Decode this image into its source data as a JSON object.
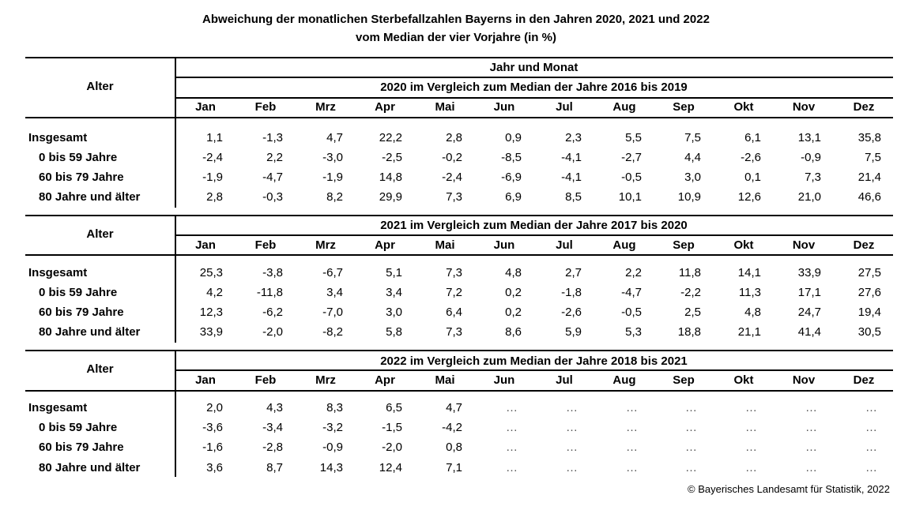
{
  "title": {
    "line1": "Abweichung der monatlichen Sterbefallzahlen Bayerns in den Jahren 2020, 2021 und 2022",
    "line2": "vom Median der vier Vorjahre (in %)"
  },
  "row_header": "Alter",
  "top_header": "Jahr und Monat",
  "months": [
    "Jan",
    "Feb",
    "Mrz",
    "Apr",
    "Mai",
    "Jun",
    "Jul",
    "Aug",
    "Sep",
    "Okt",
    "Nov",
    "Dez"
  ],
  "sections": [
    {
      "heading": "2020 im Vergleich zum Median der Jahre 2016 bis 2019",
      "rows": [
        {
          "label": "Insgesamt",
          "values": [
            "1,1",
            "-1,3",
            "4,7",
            "22,2",
            "2,8",
            "0,9",
            "2,3",
            "5,5",
            "7,5",
            "6,1",
            "13,1",
            "35,8"
          ]
        },
        {
          "label": "0 bis 59 Jahre",
          "values": [
            "-2,4",
            "2,2",
            "-3,0",
            "-2,5",
            "-0,2",
            "-8,5",
            "-4,1",
            "-2,7",
            "4,4",
            "-2,6",
            "-0,9",
            "7,5"
          ]
        },
        {
          "label": "60 bis 79 Jahre",
          "values": [
            "-1,9",
            "-4,7",
            "-1,9",
            "14,8",
            "-2,4",
            "-6,9",
            "-4,1",
            "-0,5",
            "3,0",
            "0,1",
            "7,3",
            "21,4"
          ]
        },
        {
          "label": "80 Jahre und älter",
          "values": [
            "2,8",
            "-0,3",
            "8,2",
            "29,9",
            "7,3",
            "6,9",
            "8,5",
            "10,1",
            "10,9",
            "12,6",
            "21,0",
            "46,6"
          ]
        }
      ]
    },
    {
      "heading": "2021 im Vergleich zum Median der Jahre 2017 bis 2020",
      "rows": [
        {
          "label": "Insgesamt",
          "values": [
            "25,3",
            "-3,8",
            "-6,7",
            "5,1",
            "7,3",
            "4,8",
            "2,7",
            "2,2",
            "11,8",
            "14,1",
            "33,9",
            "27,5"
          ]
        },
        {
          "label": "0 bis 59 Jahre",
          "values": [
            "4,2",
            "-11,8",
            "3,4",
            "3,4",
            "7,2",
            "0,2",
            "-1,8",
            "-4,7",
            "-2,2",
            "11,3",
            "17,1",
            "27,6"
          ]
        },
        {
          "label": "60 bis 79 Jahre",
          "values": [
            "12,3",
            "-6,2",
            "-7,0",
            "3,0",
            "6,4",
            "0,2",
            "-2,6",
            "-0,5",
            "2,5",
            "4,8",
            "24,7",
            "19,4"
          ]
        },
        {
          "label": "80 Jahre und älter",
          "values": [
            "33,9",
            "-2,0",
            "-8,2",
            "5,8",
            "7,3",
            "8,6",
            "5,9",
            "5,3",
            "18,8",
            "21,1",
            "41,4",
            "30,5"
          ]
        }
      ]
    },
    {
      "heading": "2022 im Vergleich zum Median der Jahre 2018 bis 2021",
      "rows": [
        {
          "label": "Insgesamt",
          "values": [
            "2,0",
            "4,3",
            "8,3",
            "6,5",
            "4,7",
            "…",
            "…",
            "…",
            "…",
            "…",
            "…",
            "…"
          ]
        },
        {
          "label": "0 bis 59 Jahre",
          "values": [
            "-3,6",
            "-3,4",
            "-3,2",
            "-1,5",
            "-4,2",
            "…",
            "…",
            "…",
            "…",
            "…",
            "…",
            "…"
          ]
        },
        {
          "label": "60 bis 79 Jahre",
          "values": [
            "-1,6",
            "-2,8",
            "-0,9",
            "-2,0",
            "0,8",
            "…",
            "…",
            "…",
            "…",
            "…",
            "…",
            "…"
          ]
        },
        {
          "label": "80 Jahre und älter",
          "values": [
            "3,6",
            "8,7",
            "14,3",
            "12,4",
            "7,1",
            "…",
            "…",
            "…",
            "…",
            "…",
            "…",
            "…"
          ]
        }
      ]
    }
  ],
  "footer": "© Bayerisches Landesamt für Statistik, 2022"
}
